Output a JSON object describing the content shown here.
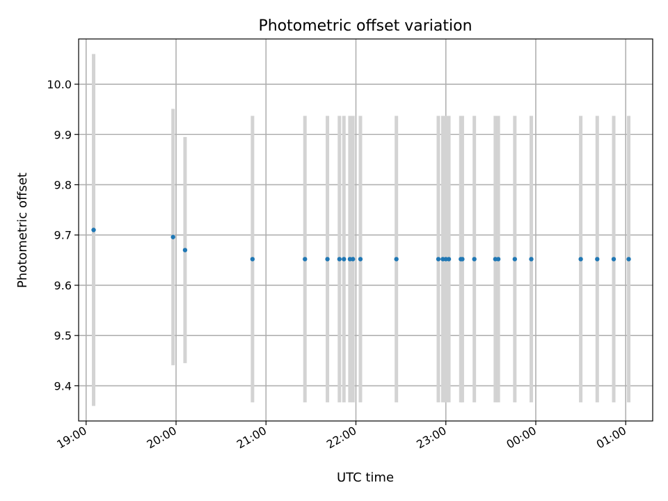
{
  "chart_data": {
    "type": "scatter",
    "title": "Photometric offset variation",
    "xlabel": "UTC time",
    "ylabel": "Photometric offset",
    "x_unit": "UTC clock time (times after 24:00 are past midnight)",
    "x_tick_labels": [
      {
        "time": "19:00",
        "label": "19:00"
      },
      {
        "time": "20:00",
        "label": "20:00"
      },
      {
        "time": "21:00",
        "label": "21:00"
      },
      {
        "time": "22:00",
        "label": "22:00"
      },
      {
        "time": "23:00",
        "label": "23:00"
      },
      {
        "time": "24:00",
        "label": "00:00"
      },
      {
        "time": "25:00",
        "label": "01:00"
      }
    ],
    "xlim": [
      "18:55",
      "25:18"
    ],
    "ylim": [
      9.33,
      10.09
    ],
    "y_ticks": [
      9.4,
      9.5,
      9.6,
      9.7,
      9.8,
      9.9,
      10.0
    ],
    "y_tick_labels": [
      "9.4",
      "9.5",
      "9.6",
      "9.7",
      "9.8",
      "9.9",
      "10.0"
    ],
    "grid": true,
    "marker_color": "#1f77b4",
    "errorbar_color": "#d3d3d3",
    "points": [
      {
        "time": "19:05",
        "y": 9.71,
        "yerr_low": 9.36,
        "yerr_high": 10.06
      },
      {
        "time": "19:58",
        "y": 9.696,
        "yerr_low": 9.441,
        "yerr_high": 9.951
      },
      {
        "time": "20:06",
        "y": 9.67,
        "yerr_low": 9.445,
        "yerr_high": 9.895
      },
      {
        "time": "20:51",
        "y": 9.652,
        "yerr_low": 9.367,
        "yerr_high": 9.937
      },
      {
        "time": "21:26",
        "y": 9.652,
        "yerr_low": 9.367,
        "yerr_high": 9.937
      },
      {
        "time": "21:41",
        "y": 9.652,
        "yerr_low": 9.367,
        "yerr_high": 9.937
      },
      {
        "time": "21:49",
        "y": 9.652,
        "yerr_low": 9.367,
        "yerr_high": 9.937
      },
      {
        "time": "21:52",
        "y": 9.652,
        "yerr_low": 9.367,
        "yerr_high": 9.937
      },
      {
        "time": "21:56",
        "y": 9.652,
        "yerr_low": 9.367,
        "yerr_high": 9.937
      },
      {
        "time": "21:58",
        "y": 9.652,
        "yerr_low": 9.367,
        "yerr_high": 9.937
      },
      {
        "time": "22:03",
        "y": 9.652,
        "yerr_low": 9.367,
        "yerr_high": 9.937
      },
      {
        "time": "22:27",
        "y": 9.652,
        "yerr_low": 9.367,
        "yerr_high": 9.937
      },
      {
        "time": "22:55",
        "y": 9.652,
        "yerr_low": 9.367,
        "yerr_high": 9.937
      },
      {
        "time": "22:58",
        "y": 9.652,
        "yerr_low": 9.367,
        "yerr_high": 9.937
      },
      {
        "time": "23:00",
        "y": 9.652,
        "yerr_low": 9.367,
        "yerr_high": 9.937
      },
      {
        "time": "23:02",
        "y": 9.652,
        "yerr_low": 9.367,
        "yerr_high": 9.937
      },
      {
        "time": "23:10",
        "y": 9.652,
        "yerr_low": 9.367,
        "yerr_high": 9.937
      },
      {
        "time": "23:11",
        "y": 9.652,
        "yerr_low": 9.367,
        "yerr_high": 9.937
      },
      {
        "time": "23:19",
        "y": 9.652,
        "yerr_low": 9.367,
        "yerr_high": 9.937
      },
      {
        "time": "23:33",
        "y": 9.652,
        "yerr_low": 9.367,
        "yerr_high": 9.937
      },
      {
        "time": "23:35",
        "y": 9.652,
        "yerr_low": 9.367,
        "yerr_high": 9.937
      },
      {
        "time": "23:46",
        "y": 9.652,
        "yerr_low": 9.367,
        "yerr_high": 9.937
      },
      {
        "time": "23:57",
        "y": 9.652,
        "yerr_low": 9.367,
        "yerr_high": 9.937
      },
      {
        "time": "24:30",
        "y": 9.652,
        "yerr_low": 9.367,
        "yerr_high": 9.937
      },
      {
        "time": "24:41",
        "y": 9.652,
        "yerr_low": 9.367,
        "yerr_high": 9.937
      },
      {
        "time": "24:52",
        "y": 9.652,
        "yerr_low": 9.367,
        "yerr_high": 9.937
      },
      {
        "time": "25:02",
        "y": 9.652,
        "yerr_low": 9.367,
        "yerr_high": 9.937
      }
    ]
  }
}
